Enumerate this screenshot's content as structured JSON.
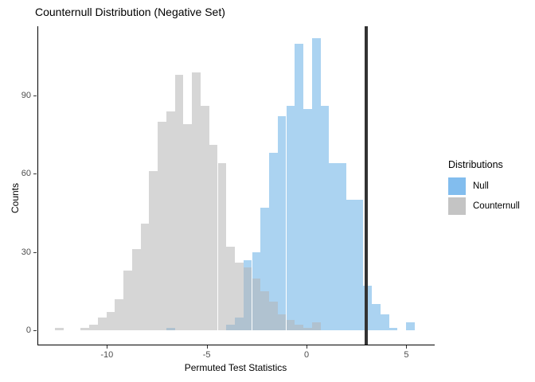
{
  "title": "Counternull Distribution (Negative Set)",
  "x_axis": {
    "label": "Permuted Test Statistics",
    "ticks": [
      "-10",
      "-5",
      "0",
      "5"
    ],
    "tick_values": [
      -10,
      -5,
      0,
      5
    ]
  },
  "y_axis": {
    "label": "Counts",
    "ticks": [
      "0",
      "30",
      "60",
      "90"
    ],
    "tick_values": [
      0,
      30,
      60,
      90
    ]
  },
  "legend": {
    "title": "Distributions",
    "items": [
      {
        "label": "Null",
        "color": "#82BDEE"
      },
      {
        "label": "Counternull",
        "color": "#C4C4C4"
      }
    ]
  },
  "colors": {
    "null_fill": "#ABD3F1",
    "counternull_fill": "rgba(180,180,180,0.55)",
    "vline": "#333333",
    "axis_line": "#000000",
    "tick_text": "#4d4d4d"
  },
  "chart_data": {
    "type": "bar",
    "subtype": "overlaid-histograms",
    "title": "Counternull Distribution (Negative Set)",
    "xlabel": "Permuted Test Statistics",
    "ylabel": "Counts",
    "xlim": [
      -13.5,
      6.4
    ],
    "ylim": [
      0,
      117
    ],
    "grid": false,
    "legend_position": "right",
    "bin_start": -12.6,
    "bin_width": 0.429,
    "vline_x": 3.0,
    "series": [
      {
        "name": "Null",
        "counts": [
          0,
          0,
          0,
          0,
          0,
          0,
          0,
          0,
          0,
          0,
          0,
          0,
          0,
          1,
          0,
          0,
          0,
          0,
          0,
          0,
          2,
          5,
          27,
          30,
          47,
          68,
          82,
          86,
          110,
          85,
          112,
          86,
          64,
          64,
          50,
          50,
          17,
          10,
          6,
          1,
          0,
          3
        ]
      },
      {
        "name": "Counternull",
        "counts": [
          1,
          0,
          0,
          1,
          2,
          5,
          7,
          12,
          23,
          31,
          41,
          61,
          80,
          84,
          98,
          79,
          99,
          86,
          71,
          64,
          32,
          26,
          24,
          20,
          15,
          11,
          6,
          4,
          2,
          1,
          3,
          0,
          0,
          0,
          0,
          0,
          0,
          0,
          0,
          0,
          0,
          0
        ]
      }
    ]
  }
}
